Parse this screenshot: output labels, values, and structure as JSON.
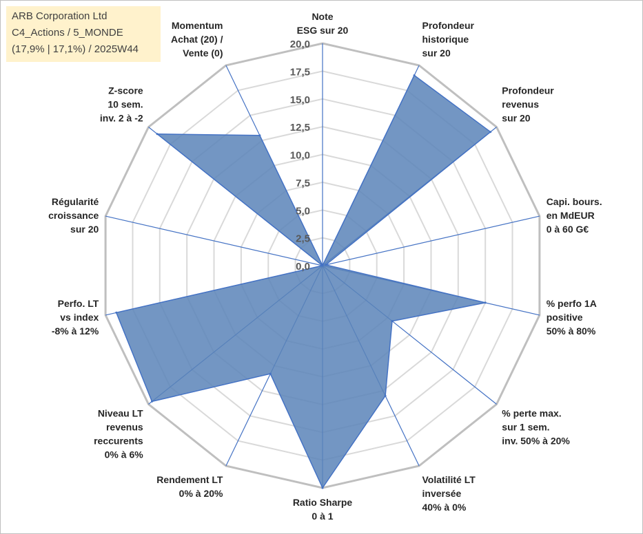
{
  "info": {
    "line1": "ARB Corporation Ltd",
    "line2": "C4_Actions / 5_MONDE",
    "line3": "(17,9% | 17,1%) / 2025W44"
  },
  "colors": {
    "fill": "#5b84b8",
    "spoke": "#4472c4",
    "grid_outer": "#bfbfbf",
    "grid_inner": "#d9d9d9"
  },
  "chart_data": {
    "type": "radar",
    "title": "",
    "rmin": 0,
    "rmax": 20,
    "tick_step": 2.5,
    "tick_labels": [
      "0,0",
      "2,5",
      "5,0",
      "7,5",
      "10,0",
      "12,5",
      "15,0",
      "17,5",
      "20,0"
    ],
    "categories": [
      [
        "Note",
        "ESG sur 20"
      ],
      [
        "Profondeur",
        "historique",
        "sur 20"
      ],
      [
        "Profondeur",
        "revenus",
        "sur 20"
      ],
      [
        "Capi. bours.",
        "en MdEUR",
        "0 à 60 G€"
      ],
      [
        "% perfo 1A",
        "positive",
        "50% à 80%"
      ],
      [
        "% perte max.",
        "sur 1 sem.",
        "inv. 50% à 20%"
      ],
      [
        "Volatilité LT",
        "inversée",
        "40% à 0%"
      ],
      [
        "Ratio Sharpe",
        "0 à 1"
      ],
      [
        "Rendement LT",
        "0% à 20%"
      ],
      [
        "Niveau LT",
        "revenus",
        "reccurents",
        "0% à 6%"
      ],
      [
        "Perfo. LT",
        "vs index",
        "-8% à 12%"
      ],
      [
        "Régularité",
        "croissance",
        "sur 20"
      ],
      [
        "Z-score",
        "10 sem.",
        "inv. 2 à -2"
      ],
      [
        "Momentum",
        "Achat (20) /",
        "Vente (0)"
      ]
    ],
    "series": [
      {
        "name": "ARB Corporation Ltd",
        "values": [
          0,
          19.0,
          19.3,
          0.3,
          15.0,
          8.0,
          13.0,
          20.0,
          10.8,
          19.6,
          19.0,
          0,
          19.0,
          13.0
        ]
      }
    ]
  }
}
